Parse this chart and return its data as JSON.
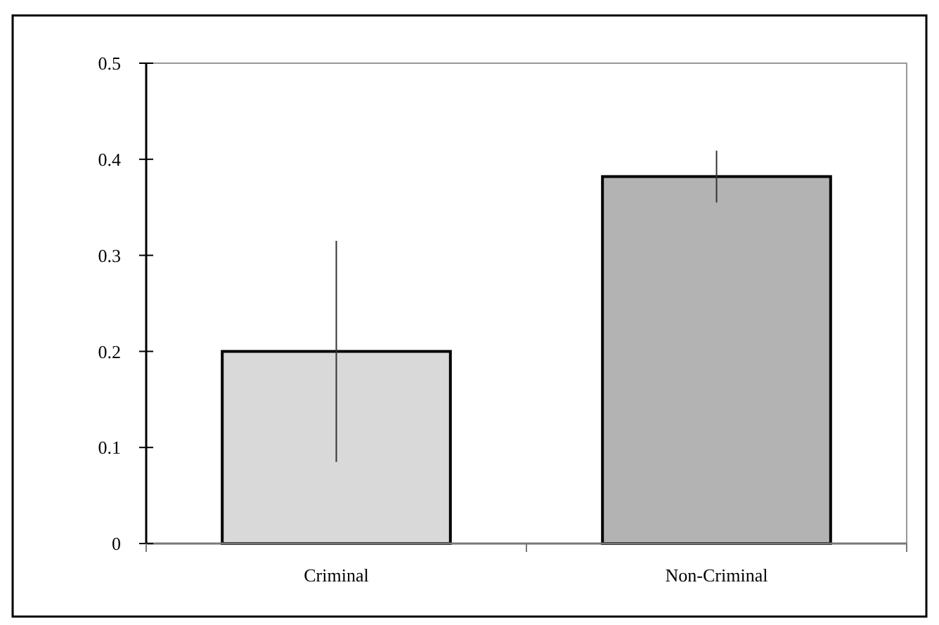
{
  "chart_data": {
    "type": "bar",
    "categories": [
      "Criminal",
      "Non-Criminal"
    ],
    "values": [
      0.2,
      0.382
    ],
    "errors": [
      0.115,
      0.027
    ],
    "colors": [
      "#d9d9d9",
      "#b3b3b3"
    ],
    "ylim": [
      0,
      0.5
    ],
    "yticks": [
      {
        "value": 0,
        "label": "0"
      },
      0.1,
      0.2,
      0.3,
      0.4,
      0.5
    ],
    "grid": false
  }
}
